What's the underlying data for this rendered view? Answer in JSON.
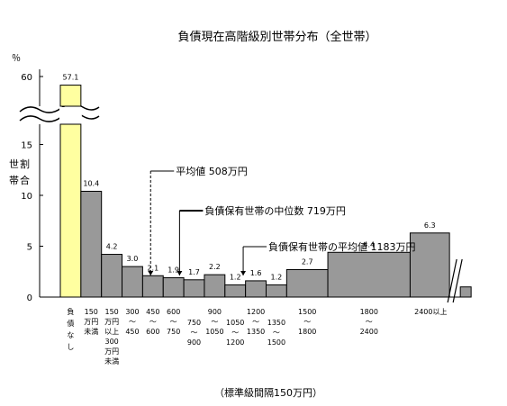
{
  "chart_data": {
    "type": "bar",
    "title": "負債現在高階級別世帯分布（全世帯）",
    "ylabel": "世帯割合",
    "yunit": "％",
    "xnote": "（標準級間隔150万円）",
    "ylim": [
      0,
      60
    ],
    "yaxis_break": true,
    "yticks": [
      0,
      5,
      10,
      15,
      60
    ],
    "grid": false,
    "categories": [
      {
        "lines": [
          "負",
          "債",
          "な",
          "し"
        ],
        "value": 57.1,
        "width_classes": 1,
        "highlight": true
      },
      {
        "lines": [
          "150",
          "万円",
          "未満"
        ],
        "value": 10.4,
        "width_classes": 1
      },
      {
        "lines": [
          "150",
          "万円",
          "以上",
          "300",
          "万円",
          "未満"
        ],
        "value": 4.2,
        "width_classes": 1
      },
      {
        "lines": [
          "300",
          "～",
          "450"
        ],
        "value": 3.0,
        "width_classes": 1
      },
      {
        "lines": [
          "450",
          "～",
          "600"
        ],
        "value": 2.1,
        "width_classes": 1
      },
      {
        "lines": [
          "600",
          "～",
          "750"
        ],
        "value": 1.9,
        "width_classes": 1
      },
      {
        "lines": [
          "750",
          "～",
          "900"
        ],
        "value": 1.7,
        "width_classes": 1
      },
      {
        "lines": [
          "900",
          "～",
          "1050"
        ],
        "value": 2.2,
        "width_classes": 1
      },
      {
        "lines": [
          "1050",
          "～",
          "1200"
        ],
        "value": 1.2,
        "width_classes": 1
      },
      {
        "lines": [
          "1200",
          "～",
          "1350"
        ],
        "value": 1.6,
        "width_classes": 1
      },
      {
        "lines": [
          "1350",
          "～",
          "1500"
        ],
        "value": 1.2,
        "width_classes": 1
      },
      {
        "lines": [
          "1500",
          "～",
          "1800"
        ],
        "value": 2.7,
        "width_classes": 2
      },
      {
        "lines": [
          "1800",
          "～",
          "2400"
        ],
        "value": 4.4,
        "width_classes": 4
      },
      {
        "lines": [
          "2400以上"
        ],
        "value": 6.3,
        "width_classes": 2,
        "broken": true
      }
    ],
    "annotations": [
      {
        "label": "平均値 508万円",
        "value_man_yen": 508
      },
      {
        "label": "負債保有世帯の中位数 719万円",
        "value_man_yen": 719
      },
      {
        "label": "負債保有世帯の平均値 1183万円",
        "value_man_yen": 1183
      }
    ],
    "colors": {
      "bar": "#999999",
      "highlight": "#ffffa0",
      "stroke": "#000000"
    }
  }
}
